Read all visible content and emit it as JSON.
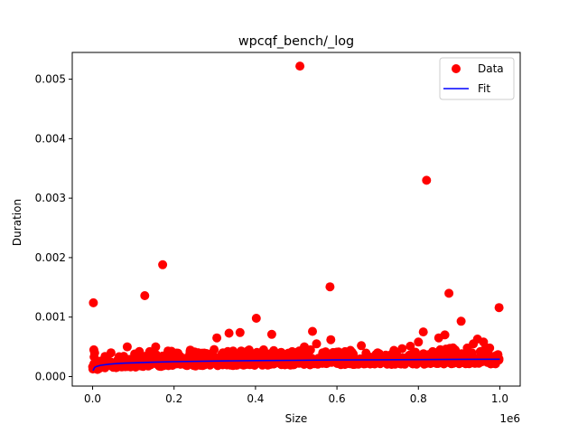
{
  "chart_data": {
    "type": "scatter",
    "title": "wpcqf_bench/_log",
    "xlabel": "Size",
    "ylabel": "Duration",
    "x_offset_label": "1e6",
    "xlim": [
      -50000,
      1050000
    ],
    "ylim": [
      -0.00016,
      0.00545
    ],
    "x_ticks": [
      0,
      200000,
      400000,
      600000,
      800000,
      1000000
    ],
    "x_tick_labels": [
      "0.0",
      "0.2",
      "0.4",
      "0.6",
      "0.8",
      "1.0"
    ],
    "y_ticks": [
      0,
      0.001,
      0.002,
      0.003,
      0.004,
      0.005
    ],
    "y_tick_labels": [
      "0.000",
      "0.001",
      "0.002",
      "0.003",
      "0.004",
      "0.005"
    ],
    "grid": false,
    "legend": {
      "position": "top-right",
      "entries": [
        "Data",
        "Fit"
      ]
    },
    "series": [
      {
        "name": "Data",
        "kind": "scatter",
        "color": "#ff0000",
        "points": [
          [
            2000,
            0.00124
          ],
          [
            3000,
            0.00045
          ],
          [
            5000,
            0.0004
          ],
          [
            8000,
            0.00018
          ],
          [
            12000,
            0.00012
          ],
          [
            20000,
            0.00015
          ],
          [
            30000,
            0.00022
          ],
          [
            45000,
            0.00018
          ],
          [
            60000,
            0.00025
          ],
          [
            70000,
            0.0003
          ],
          [
            85000,
            0.0005
          ],
          [
            100000,
            0.00026
          ],
          [
            115000,
            0.00033
          ],
          [
            128000,
            0.00136
          ],
          [
            140000,
            0.00042
          ],
          [
            155000,
            0.0005
          ],
          [
            172000,
            0.00188
          ],
          [
            185000,
            0.00043
          ],
          [
            200000,
            0.00028
          ],
          [
            215000,
            0.00034
          ],
          [
            230000,
            0.0003
          ],
          [
            245000,
            0.00038
          ],
          [
            260000,
            0.00027
          ],
          [
            275000,
            0.00032
          ],
          [
            290000,
            0.00026
          ],
          [
            305000,
            0.00065
          ],
          [
            320000,
            0.0004
          ],
          [
            335000,
            0.00073
          ],
          [
            350000,
            0.00033
          ],
          [
            362000,
            0.00074
          ],
          [
            375000,
            0.0004
          ],
          [
            390000,
            0.00028
          ],
          [
            402000,
            0.00098
          ],
          [
            420000,
            0.00045
          ],
          [
            440000,
            0.00071
          ],
          [
            455000,
            0.00037
          ],
          [
            470000,
            0.0003
          ],
          [
            490000,
            0.00042
          ],
          [
            509000,
            0.00522
          ],
          [
            520000,
            0.0005
          ],
          [
            535000,
            0.00045
          ],
          [
            540000,
            0.00076
          ],
          [
            550000,
            0.00055
          ],
          [
            565000,
            0.0004
          ],
          [
            583000,
            0.00151
          ],
          [
            585000,
            0.00062
          ],
          [
            600000,
            0.00039
          ],
          [
            620000,
            0.00042
          ],
          [
            640000,
            0.00038
          ],
          [
            660000,
            0.00052
          ],
          [
            680000,
            0.00033
          ],
          [
            700000,
            0.0004
          ],
          [
            720000,
            0.00036
          ],
          [
            740000,
            0.00044
          ],
          [
            760000,
            0.00047
          ],
          [
            780000,
            0.00051
          ],
          [
            800000,
            0.00058
          ],
          [
            812000,
            0.00075
          ],
          [
            820000,
            0.0033
          ],
          [
            835000,
            0.00042
          ],
          [
            850000,
            0.00065
          ],
          [
            865000,
            0.0007
          ],
          [
            875000,
            0.0014
          ],
          [
            890000,
            0.00045
          ],
          [
            905000,
            0.00093
          ],
          [
            920000,
            0.00048
          ],
          [
            935000,
            0.00055
          ],
          [
            945000,
            0.00063
          ],
          [
            960000,
            0.00058
          ],
          [
            975000,
            0.00048
          ],
          [
            990000,
            0.00035
          ],
          [
            998000,
            0.00116
          ]
        ]
      },
      {
        "name": "Fit",
        "kind": "line",
        "color": "#0000ff",
        "points": [
          [
            1000,
            0.0001
          ],
          [
            5000,
            0.000155
          ],
          [
            10000,
            0.000172
          ],
          [
            20000,
            0.00019
          ],
          [
            40000,
            0.000208
          ],
          [
            60000,
            0.000218
          ],
          [
            80000,
            0.000226
          ],
          [
            100000,
            0.000231
          ],
          [
            150000,
            0.000242
          ],
          [
            200000,
            0.00025
          ],
          [
            300000,
            0.000261
          ],
          [
            400000,
            0.000268
          ],
          [
            500000,
            0.000274
          ],
          [
            600000,
            0.000279
          ],
          [
            700000,
            0.000283
          ],
          [
            800000,
            0.000286
          ],
          [
            900000,
            0.00029
          ],
          [
            1000000,
            0.000292
          ]
        ]
      }
    ]
  }
}
